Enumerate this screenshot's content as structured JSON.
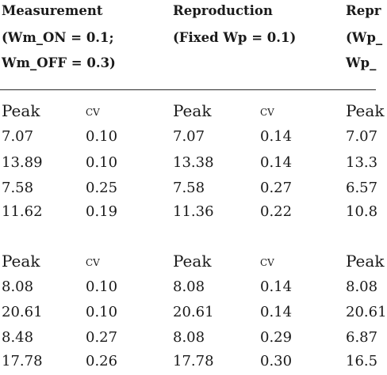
{
  "header": {
    "col1": [
      "Measurement",
      "(Wm_ON = 0.1;",
      "Wm_OFF = 0.3)"
    ],
    "col2": [
      "Reproduction",
      "(Fixed Wp = 0.1)"
    ],
    "col3": [
      "Repr",
      "(Wp_",
      "Wp_"
    ]
  },
  "sections": [
    {
      "labels": [
        "Peak",
        "cv",
        "Peak",
        "cv",
        "Peak"
      ],
      "rows": [
        [
          "7.07",
          "0.10",
          "7.07",
          "0.14",
          "7.07"
        ],
        [
          "13.89",
          "0.10",
          "13.38",
          "0.14",
          "13.3"
        ],
        [
          "7.58",
          "0.25",
          "7.58",
          "0.27",
          "6.57"
        ],
        [
          "11.62",
          "0.19",
          "11.36",
          "0.22",
          "10.8"
        ]
      ]
    },
    {
      "labels": [
        "Peak",
        "cv",
        "Peak",
        "cv",
        "Peak"
      ],
      "rows": [
        [
          "8.08",
          "0.10",
          "8.08",
          "0.14",
          "8.08"
        ],
        [
          "20.61",
          "0.10",
          "20.61",
          "0.14",
          "20.61"
        ],
        [
          "8.48",
          "0.27",
          "8.08",
          "0.29",
          "6.87"
        ],
        [
          "17.78",
          "0.26",
          "17.78",
          "0.30",
          "16.5"
        ]
      ]
    }
  ]
}
